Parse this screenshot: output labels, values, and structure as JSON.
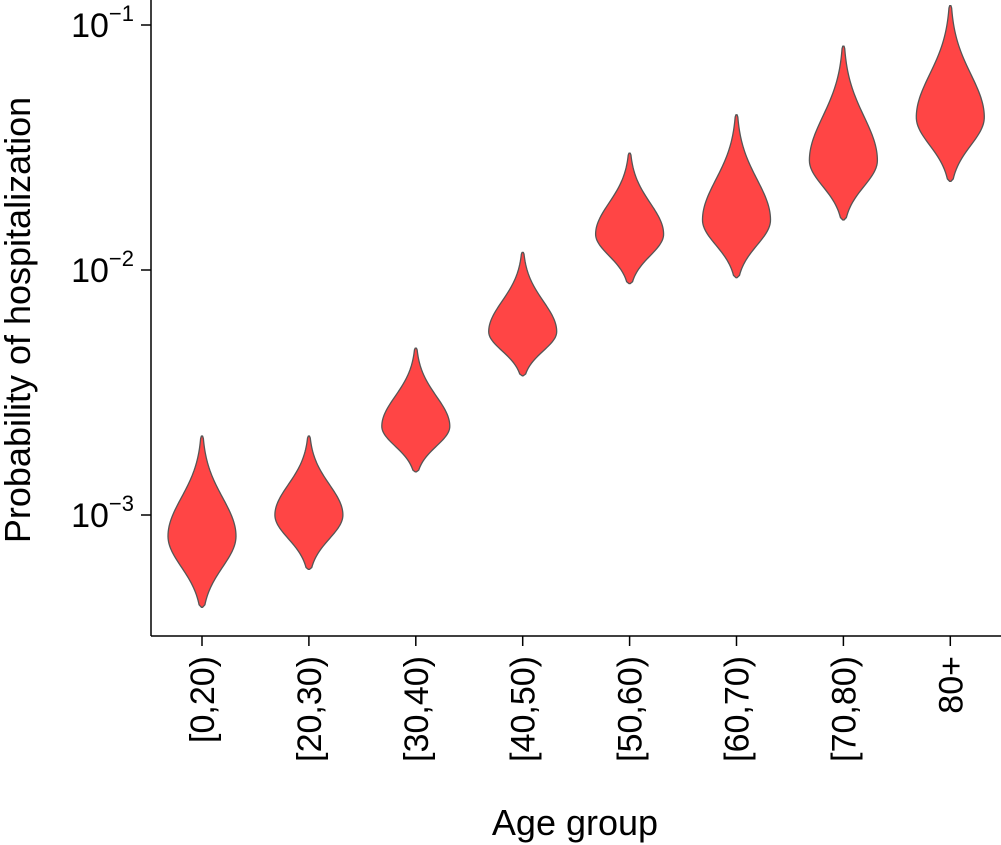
{
  "chart_data": {
    "type": "violin",
    "title": "",
    "xlabel": "Age group",
    "ylabel": "Probability of hospitalization",
    "yscale": "log",
    "ylim": [
      0.00034,
      0.13
    ],
    "y_ticks": [
      {
        "value": 0.001,
        "base": "10",
        "exponent": "−3"
      },
      {
        "value": 0.01,
        "base": "10",
        "exponent": "−2"
      },
      {
        "value": 0.1,
        "base": "10",
        "exponent": "−1"
      }
    ],
    "categories": [
      "[0,20)",
      "[20,30)",
      "[30,40)",
      "[40,50)",
      "[50,60)",
      "[60,70)",
      "[70,80)",
      "80+"
    ],
    "violins": [
      {
        "category": "[0,20)",
        "min": 0.00042,
        "mode": 0.00082,
        "max": 0.0021
      },
      {
        "category": "[20,30)",
        "min": 0.0006,
        "mode": 0.001,
        "max": 0.0021
      },
      {
        "category": "[30,40)",
        "min": 0.0015,
        "mode": 0.0023,
        "max": 0.0048
      },
      {
        "category": "[40,50)",
        "min": 0.0037,
        "mode": 0.0056,
        "max": 0.0118
      },
      {
        "category": "[50,60)",
        "min": 0.0088,
        "mode": 0.014,
        "max": 0.03
      },
      {
        "category": "[60,70)",
        "min": 0.0093,
        "mode": 0.016,
        "max": 0.043
      },
      {
        "category": "[70,80)",
        "min": 0.016,
        "mode": 0.028,
        "max": 0.082
      },
      {
        "category": "80+",
        "min": 0.023,
        "mode": 0.042,
        "max": 0.12
      }
    ],
    "grid": false,
    "colors": {
      "fill": "#ff4545",
      "edge": "#555555",
      "axis": "#000000"
    }
  }
}
